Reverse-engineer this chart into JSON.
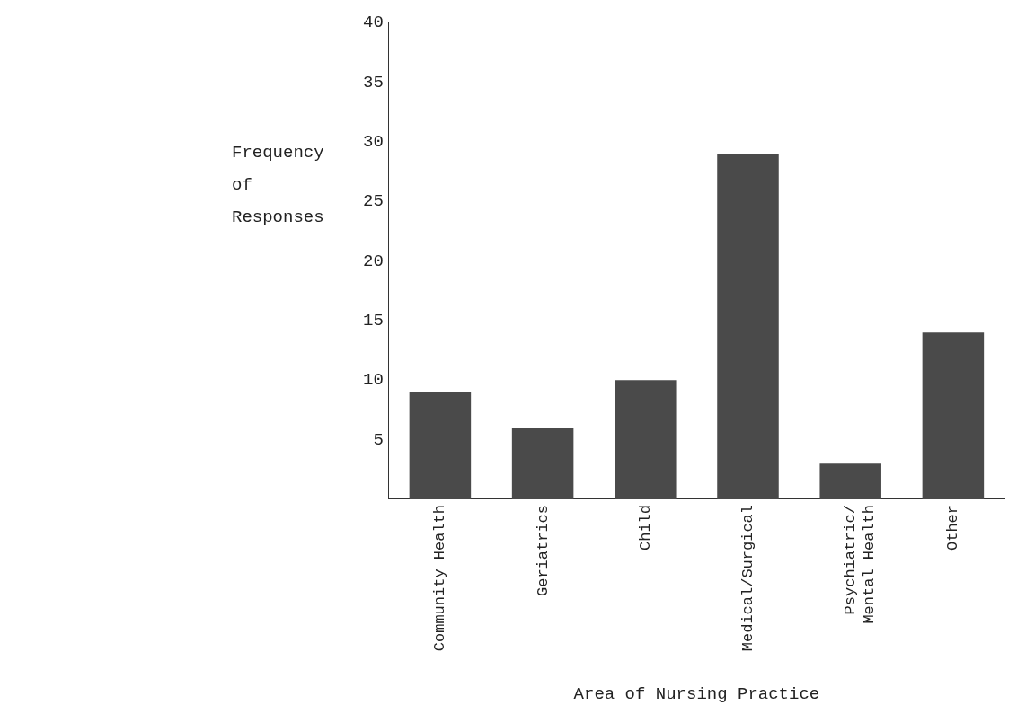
{
  "chart_data": {
    "type": "bar",
    "xlabel": "Area of Nursing Practice",
    "ylabel": "Frequency of Responses",
    "categories": [
      "Community Health",
      "Geriatrics",
      "Child",
      "Medical/Surgical",
      "Psychiatric/ Mental Health",
      "Other"
    ],
    "values": [
      9,
      6,
      10,
      29,
      3,
      14
    ],
    "color": "#4a4a4a",
    "ylim": [
      0,
      40
    ],
    "yticks": [
      5,
      10,
      15,
      20,
      25,
      30,
      35,
      40
    ],
    "grid": false,
    "legend": false
  }
}
